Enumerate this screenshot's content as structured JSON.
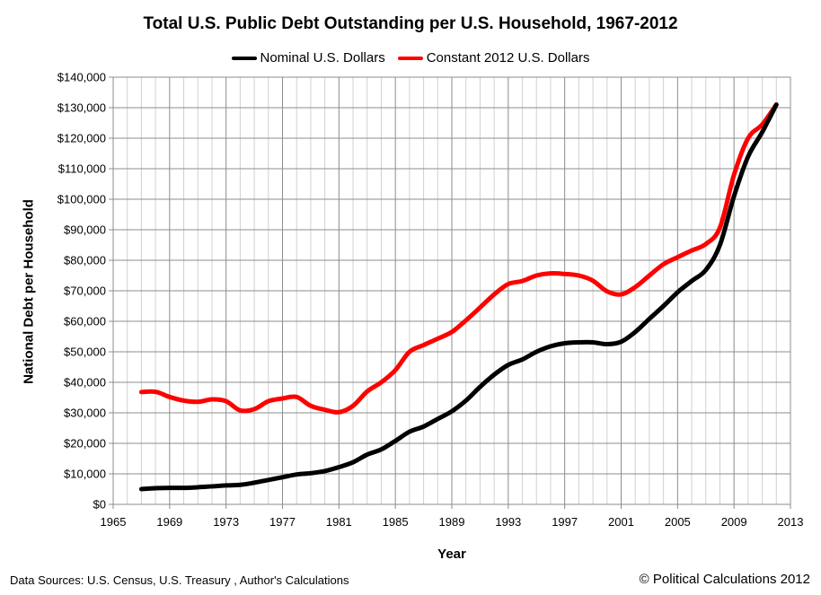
{
  "chart_data": {
    "type": "line",
    "title": "Total U.S. Public Debt Outstanding per U.S. Household, 1967-2012",
    "xlabel": "Year",
    "ylabel": "National Debt per Household",
    "xlim": [
      1965,
      2013
    ],
    "ylim": [
      0,
      140000
    ],
    "xticks": [
      1965,
      1969,
      1973,
      1977,
      1981,
      1985,
      1989,
      1993,
      1997,
      2001,
      2005,
      2009,
      2013
    ],
    "ytick_labels": [
      "$0",
      "$10,000",
      "$20,000",
      "$30,000",
      "$40,000",
      "$50,000",
      "$60,000",
      "$70,000",
      "$80,000",
      "$90,000",
      "$100,000",
      "$110,000",
      "$120,000",
      "$130,000",
      "$140,000"
    ],
    "grid": true,
    "legend_position": "top",
    "x": [
      1967,
      1968,
      1969,
      1970,
      1971,
      1972,
      1973,
      1974,
      1975,
      1976,
      1977,
      1978,
      1979,
      1980,
      1981,
      1982,
      1983,
      1984,
      1985,
      1986,
      1987,
      1988,
      1989,
      1990,
      1991,
      1992,
      1993,
      1994,
      1995,
      1996,
      1997,
      1998,
      1999,
      2000,
      2001,
      2002,
      2003,
      2004,
      2005,
      2006,
      2007,
      2008,
      2009,
      2010,
      2011,
      2012
    ],
    "series": [
      {
        "name": "Nominal U.S. Dollars",
        "color": "#000000",
        "values": [
          5000,
          5300,
          5400,
          5400,
          5600,
          5900,
          6200,
          6400,
          7100,
          8000,
          8900,
          9800,
          10200,
          10900,
          12200,
          13800,
          16300,
          18000,
          20800,
          23800,
          25500,
          28000,
          30500,
          34000,
          38500,
          42500,
          45700,
          47500,
          50000,
          51800,
          52800,
          53100,
          53100,
          52500,
          53300,
          56500,
          60800,
          65000,
          69500,
          73200,
          76800,
          85000,
          101000,
          114000,
          122000,
          131000
        ]
      },
      {
        "name": "Constant 2012 U.S. Dollars",
        "color": "#ff0000",
        "values": [
          36800,
          36900,
          35200,
          34000,
          33600,
          34400,
          33800,
          30800,
          31200,
          33800,
          34700,
          35200,
          32300,
          31000,
          30200,
          32300,
          37000,
          40000,
          44000,
          50000,
          52200,
          54300,
          56500,
          60300,
          64500,
          68800,
          72200,
          73200,
          75000,
          75700,
          75500,
          75000,
          73300,
          69800,
          68800,
          71200,
          75000,
          78700,
          81000,
          83200,
          85300,
          90700,
          108000,
          120000,
          124500,
          131000
        ]
      }
    ]
  },
  "footer": {
    "sources": "Data Sources: U.S. Census, U.S. Treasury , Author's Calculations",
    "copyright": "© Political Calculations 2012"
  }
}
